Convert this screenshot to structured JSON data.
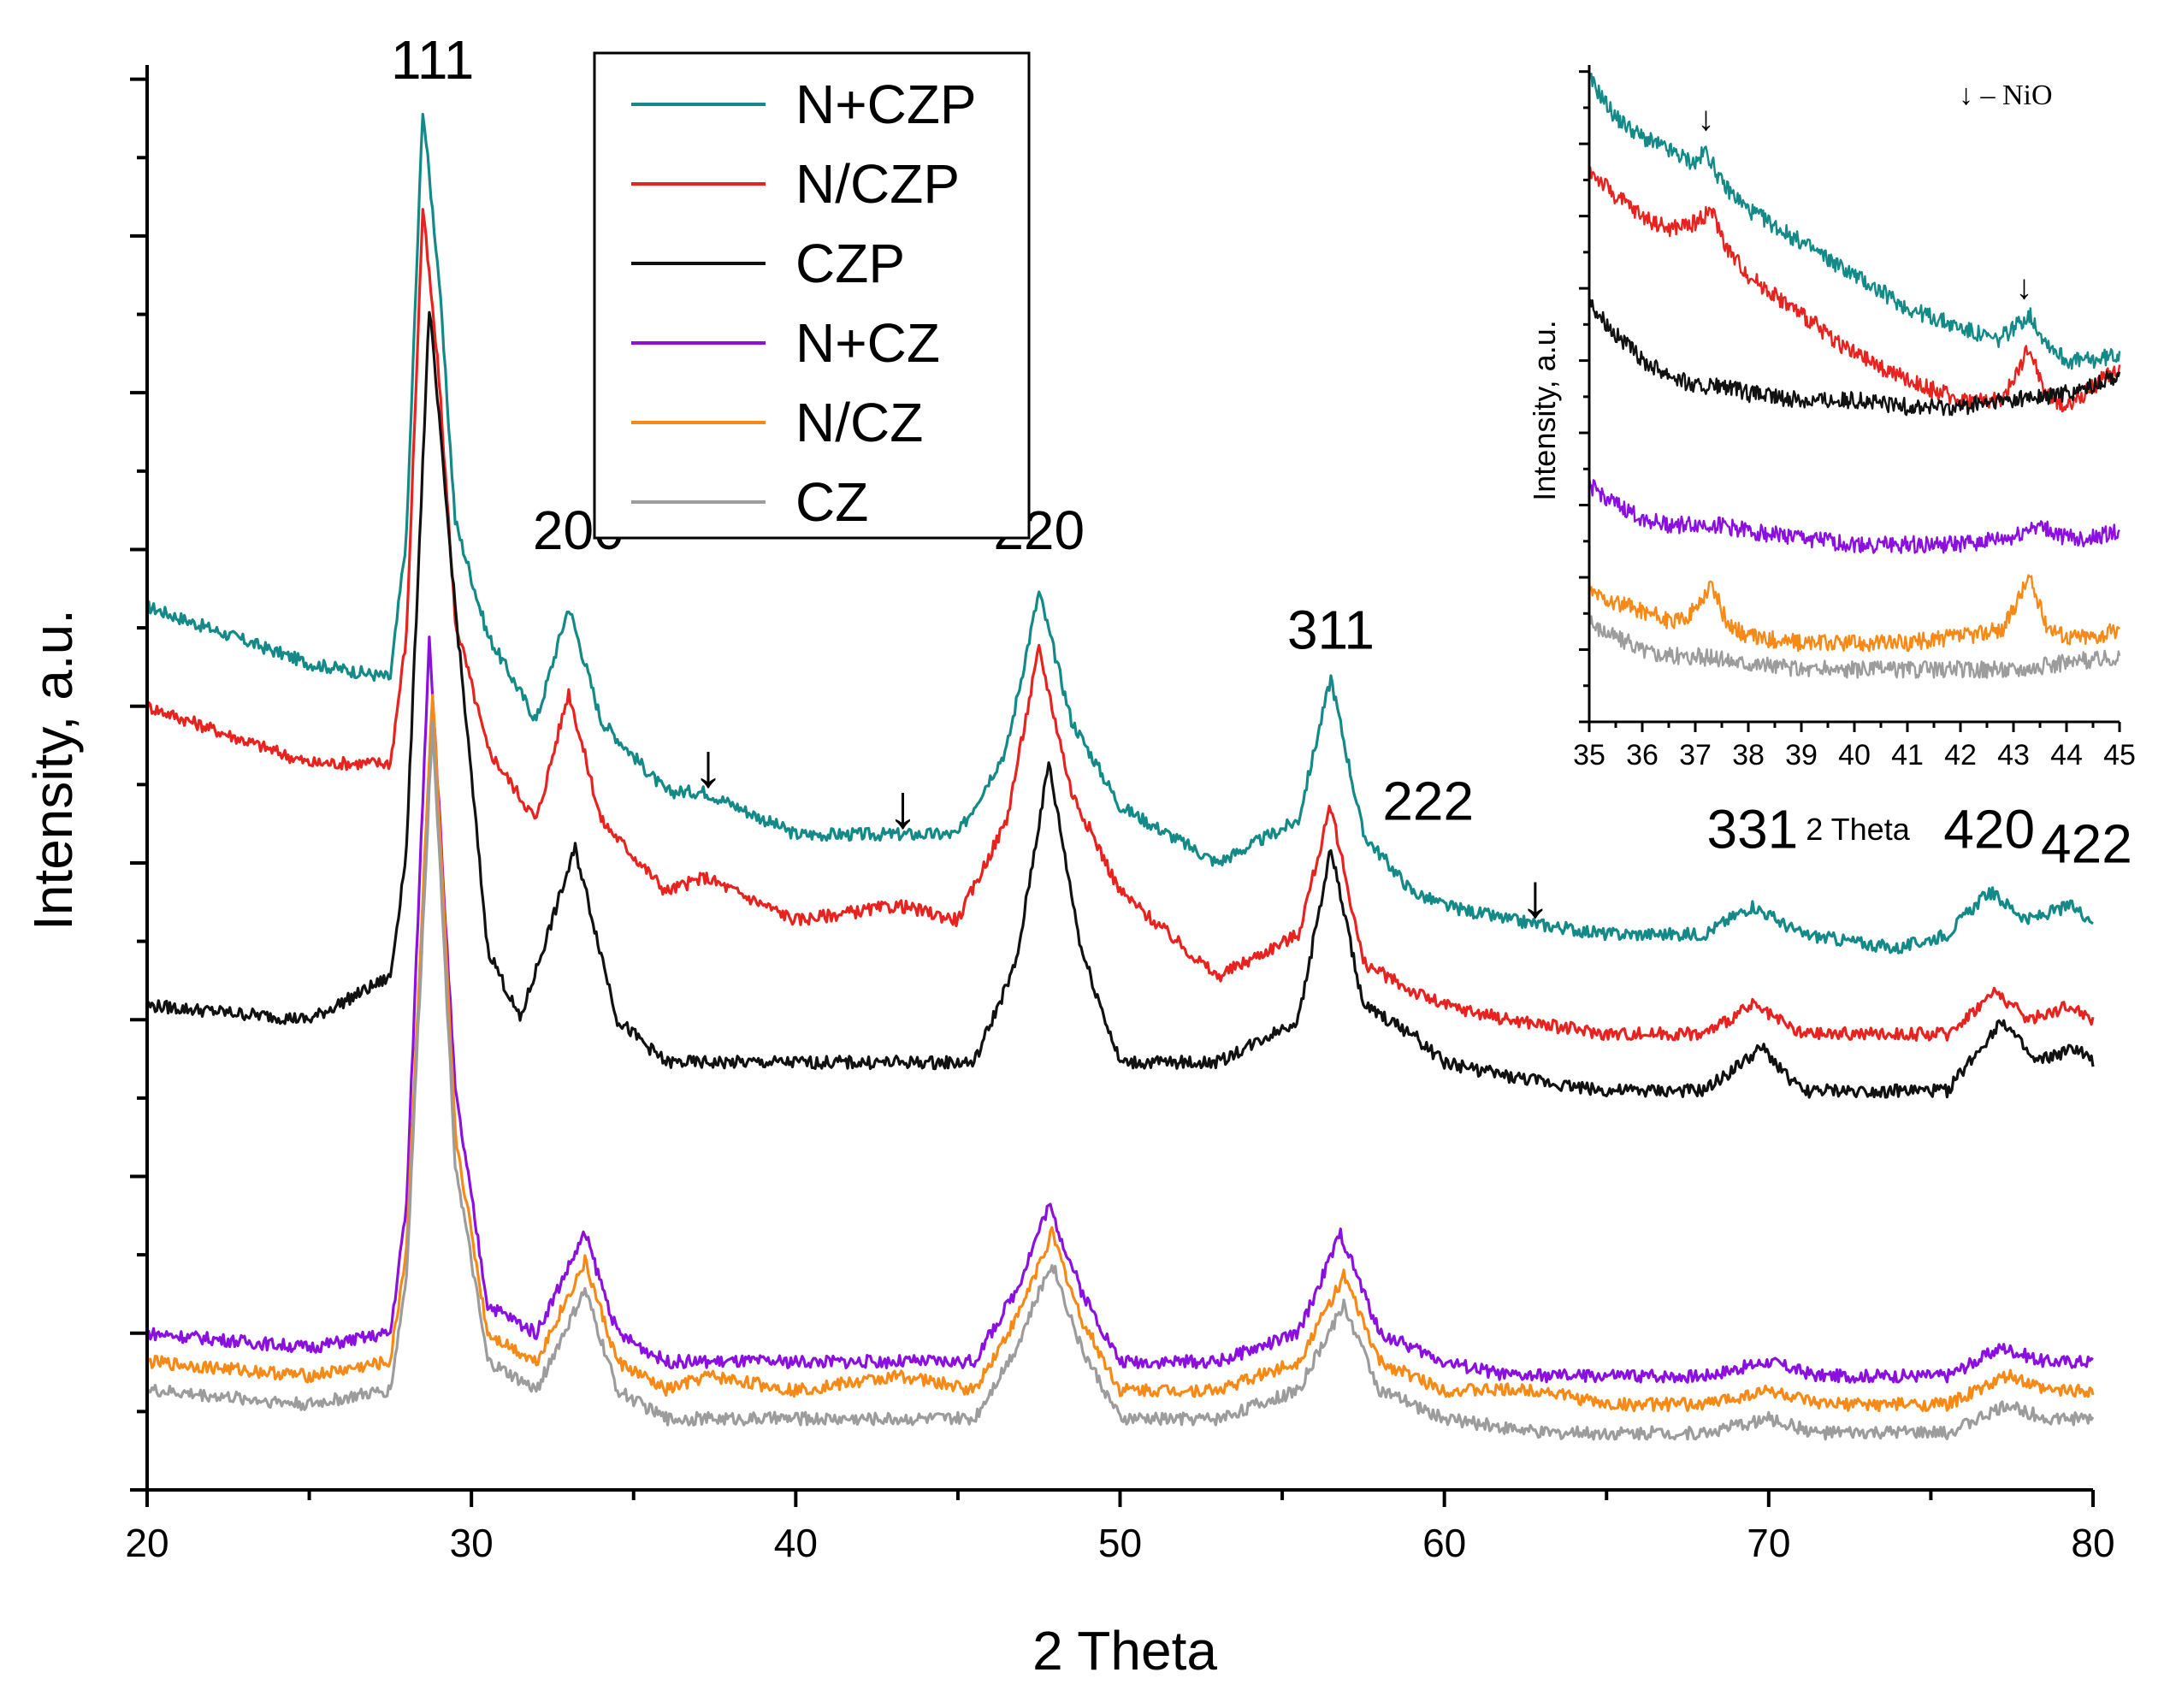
{
  "chart_data": [
    {
      "type": "line",
      "title": "",
      "xlabel": "2 Theta",
      "ylabel": "Intensity, a.u.",
      "xlim": [
        20,
        80
      ],
      "ylim": [
        0,
        100
      ],
      "x_ticks": [
        "20",
        "30",
        "40",
        "50",
        "60",
        "70",
        "80"
      ],
      "y_tick_labels_shown": false,
      "grid": false,
      "legend_position": "top-center",
      "series": [
        {
          "name": "N+CZP",
          "color": "#138a88",
          "x": [
            20,
            25,
            27.5,
            28.0,
            28.5,
            29.0,
            29.5,
            30.5,
            32.0,
            33.0,
            34.0,
            36.0,
            37.2,
            40.0,
            43.2,
            45.0,
            46.5,
            47.5,
            48.5,
            50.0,
            53.0,
            55.5,
            56.5,
            57.5,
            59.0,
            60.0,
            62.0,
            65.0,
            68.0,
            69.5,
            71.0,
            74.0,
            75.5,
            76.8,
            78.0,
            79.3,
            80.0
          ],
          "y": [
            62,
            58,
            57,
            67,
            97,
            85,
            68,
            60,
            54,
            62,
            54,
            49,
            49,
            46,
            46,
            46,
            52,
            63,
            54,
            48,
            44,
            47,
            57,
            46,
            42,
            41,
            40,
            39,
            39,
            41,
            39,
            38,
            39,
            42,
            40,
            41,
            40
          ]
        },
        {
          "name": "N/CZP",
          "color": "#e8231f",
          "x": [
            20,
            25,
            27.5,
            28.0,
            28.5,
            29.0,
            29.5,
            30.5,
            32.0,
            33.0,
            34.0,
            36.0,
            37.2,
            40.0,
            43.2,
            45.0,
            46.5,
            47.5,
            48.5,
            50.0,
            53.0,
            55.5,
            56.5,
            57.5,
            59.0,
            60.0,
            62.0,
            65.0,
            68.0,
            69.5,
            71.0,
            74.0,
            75.5,
            77.0,
            78.0,
            79.3,
            80.0
          ],
          "y": [
            55,
            51,
            51,
            60,
            90,
            78,
            61,
            52,
            47,
            56,
            47,
            42,
            43,
            40,
            41,
            40,
            47,
            59,
            49,
            42,
            36,
            39,
            48,
            37,
            35,
            34,
            33,
            32,
            32,
            34,
            32,
            32,
            32,
            35,
            33,
            34,
            33
          ]
        },
        {
          "name": "CZP",
          "color": "#111111",
          "x": [
            20,
            25,
            27.5,
            28.0,
            28.7,
            29.5,
            30.5,
            31.5,
            33.2,
            34.5,
            36.0,
            40.0,
            43.0,
            45.5,
            46.8,
            47.8,
            48.8,
            50.0,
            53.0,
            55.5,
            56.5,
            57.5,
            59.0,
            60.0,
            62.0,
            65.0,
            68.0,
            69.8,
            71.0,
            74.0,
            75.5,
            77.2,
            78.2,
            79.5,
            80.0
          ],
          "y": [
            34,
            33,
            36,
            45,
            83,
            62,
            38,
            33,
            45,
            33,
            30,
            30,
            30,
            30,
            37,
            51,
            38,
            30,
            30,
            33,
            45,
            34,
            32,
            30,
            29,
            28,
            28,
            31,
            28,
            28,
            28,
            33,
            30,
            31,
            30
          ]
        },
        {
          "name": "N+CZ",
          "color": "#8b10e0",
          "x": [
            20,
            25,
            27.5,
            28.0,
            28.7,
            29.5,
            30.5,
            32.0,
            33.5,
            34.5,
            36.0,
            40.0,
            43.3,
            45.5,
            46.8,
            47.8,
            48.8,
            50.0,
            53.0,
            55.5,
            56.8,
            58.0,
            60.0,
            62.0,
            65.0,
            68.0,
            70.0,
            71.5,
            74.0,
            75.5,
            77.2,
            78.5,
            80.0
          ],
          "y": [
            11,
            10,
            11,
            20,
            60,
            28,
            13,
            11,
            18,
            11,
            9,
            9,
            9,
            9,
            14,
            20,
            14,
            9,
            9,
            11,
            18,
            11,
            9,
            8,
            8,
            8,
            9,
            8,
            8,
            8,
            10,
            9,
            9
          ]
        },
        {
          "name": "N/CZ",
          "color": "#f78a17",
          "x": [
            20,
            25,
            27.5,
            28.0,
            28.8,
            29.5,
            30.5,
            32.0,
            33.5,
            34.5,
            36.0,
            37.3,
            40.0,
            43.3,
            45.5,
            46.8,
            47.9,
            48.8,
            50.0,
            53.0,
            55.5,
            56.9,
            58.0,
            60.0,
            63.0,
            65.0,
            68.0,
            70.0,
            71.5,
            74.0,
            75.5,
            77.4,
            78.5,
            80.0
          ],
          "y": [
            9,
            8,
            9,
            17,
            56,
            25,
            11,
            9,
            16,
            9,
            7,
            8,
            7,
            8,
            7,
            12,
            18,
            12,
            7,
            7,
            9,
            15,
            9,
            7,
            7,
            6,
            6,
            7,
            6,
            6,
            6,
            8,
            7,
            7
          ]
        },
        {
          "name": "CZ",
          "color": "#9c9c9c",
          "x": [
            20,
            25,
            27.5,
            28.0,
            28.8,
            29.5,
            30.5,
            32.0,
            33.5,
            34.5,
            36.0,
            40.0,
            43.0,
            45.5,
            46.8,
            47.9,
            48.8,
            50.0,
            53.0,
            55.5,
            56.9,
            58.0,
            60.0,
            63.0,
            65.0,
            68.0,
            70.0,
            71.5,
            74.0,
            75.5,
            77.4,
            78.5,
            80.0
          ],
          "y": [
            7,
            6,
            7,
            15,
            54,
            23,
            9,
            7,
            14,
            7,
            5,
            5,
            5,
            5,
            10,
            16,
            10,
            5,
            5,
            7,
            13,
            7,
            5,
            4,
            4,
            4,
            5,
            4,
            4,
            4,
            6,
            5,
            5
          ]
        }
      ],
      "annotations": [
        {
          "text": "111",
          "x": 28.8,
          "y": 100
        },
        {
          "text": "200",
          "x": 33.3,
          "y": 67
        },
        {
          "text": "220",
          "x": 47.5,
          "y": 67
        },
        {
          "text": "311",
          "x": 56.5,
          "y": 60
        },
        {
          "text": "222",
          "x": 59.5,
          "y": 48
        },
        {
          "text": "331",
          "x": 69.5,
          "y": 46
        },
        {
          "text": "420",
          "x": 76.8,
          "y": 46
        },
        {
          "text": "422",
          "x": 79.8,
          "y": 45
        }
      ],
      "arrow_markers": [
        {
          "x": 37.3,
          "label": "↓"
        },
        {
          "x": 43.3,
          "label": "↓"
        },
        {
          "x": 62.8,
          "label": "↓"
        }
      ]
    },
    {
      "type": "line",
      "title": "",
      "xlabel": "2 Theta",
      "ylabel": "Intensity, a.u.",
      "xlim": [
        35,
        45
      ],
      "ylim": [
        0,
        100
      ],
      "x_ticks": [
        "35",
        "36",
        "37",
        "38",
        "39",
        "40",
        "41",
        "42",
        "43",
        "44",
        "45"
      ],
      "annotation": "↓ – NiO",
      "series": [
        {
          "color": "#138a88",
          "x": [
            35,
            35.5,
            36.0,
            36.5,
            37.0,
            37.2,
            37.5,
            38.0,
            39.0,
            40.0,
            41.0,
            42.0,
            42.7,
            43.0,
            43.3,
            43.6,
            44.0,
            44.5,
            45.0
          ],
          "y": [
            98,
            92,
            89,
            87,
            85,
            87,
            82,
            78,
            73,
            68,
            63,
            60,
            58,
            60,
            62,
            58,
            55,
            55,
            56
          ]
        },
        {
          "color": "#e8231f",
          "x": [
            35,
            35.5,
            36.0,
            36.5,
            37.0,
            37.3,
            37.6,
            38.0,
            39.0,
            40.0,
            41.0,
            42.0,
            42.8,
            43.3,
            43.6,
            44.0,
            44.5,
            45.0
          ],
          "y": [
            84,
            80,
            77,
            75,
            76,
            78,
            72,
            68,
            62,
            56,
            52,
            49,
            49,
            57,
            50,
            48,
            51,
            54
          ]
        },
        {
          "color": "#111111",
          "x": [
            35,
            35.5,
            36.0,
            36.5,
            37.0,
            37.5,
            38.0,
            39.0,
            40.0,
            41.0,
            42.0,
            43.0,
            44.0,
            44.5,
            45.0
          ],
          "y": [
            64,
            59,
            55,
            53,
            51,
            51,
            50,
            49,
            49,
            48,
            48,
            49,
            50,
            51,
            53
          ]
        },
        {
          "color": "#8b10e0",
          "x": [
            35,
            35.5,
            36.0,
            36.5,
            37.0,
            37.5,
            38.0,
            39.0,
            40.0,
            41.0,
            42.0,
            43.0,
            43.4,
            44.0,
            44.5,
            45.0
          ],
          "y": [
            36,
            33,
            31,
            30,
            30,
            30,
            29,
            28,
            27,
            27,
            27,
            28,
            30,
            28,
            28,
            29
          ]
        },
        {
          "color": "#f78a17",
          "x": [
            35,
            35.5,
            36.0,
            36.6,
            37.0,
            37.3,
            37.6,
            38.0,
            39.0,
            40.0,
            41.0,
            42.0,
            42.8,
            43.1,
            43.3,
            43.6,
            44.0,
            44.5,
            45.0
          ],
          "y": [
            20,
            18,
            17,
            15,
            17,
            21,
            15,
            13,
            12,
            12,
            12,
            13,
            14,
            19,
            22,
            15,
            13,
            13,
            14
          ]
        },
        {
          "color": "#9c9c9c",
          "x": [
            35,
            35.5,
            36.0,
            36.5,
            37.0,
            38.0,
            39.0,
            40.0,
            41.0,
            42.0,
            43.0,
            44.0,
            45.0
          ],
          "y": [
            15,
            13,
            11,
            10,
            10,
            9,
            8,
            8,
            8,
            8,
            8,
            9,
            10
          ]
        }
      ]
    }
  ]
}
